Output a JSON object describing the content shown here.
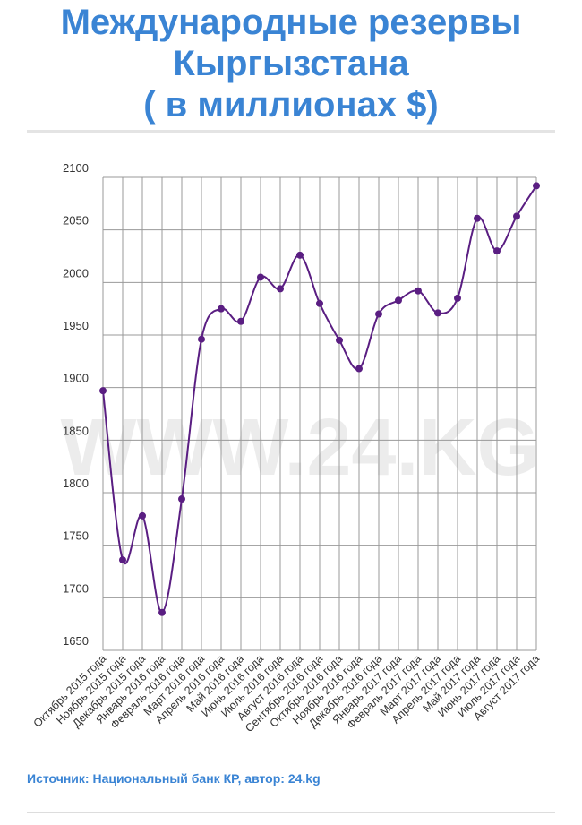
{
  "chart_data": {
    "type": "line",
    "title": [
      "Международные резервы",
      "Кыргызстана",
      "( в миллионах $)"
    ],
    "watermark": "WWW.24.KG",
    "source": "Источник: Национальный банк КР, автор: 24.kg",
    "categories": [
      "Октябрь 2015 года",
      "Ноябрь 2015 года",
      "Декабрь 2015 года",
      "Январь 2016 года",
      "Февраль 2016 года",
      "Март 2016 года",
      "Апрель 2016 года",
      "Май 2016 года",
      "Июнь 2016 года",
      "Июль 2016 года",
      "Август 2016 года",
      "Сентябрь 2016 года",
      "Октябрь 2016 года",
      "Ноябрь 2016 года",
      "Декабрь 2016 года",
      "Январь 2017 года",
      "Февраль 2017 года",
      "Март 2017 года",
      "Апрель 2017 года",
      "Май 2017 года",
      "Июнь 2017 года",
      "Июль 2017 года",
      "Август 2017 года"
    ],
    "values": [
      1897,
      1736,
      1778,
      1686,
      1794,
      1946,
      1975,
      1963,
      2005,
      1994,
      2026,
      1980,
      1945,
      1918,
      1970,
      1983,
      1992,
      1971,
      1985,
      2061,
      2030,
      2063,
      2092
    ],
    "color": "#5a1e82",
    "ylim": [
      1650,
      2100
    ],
    "yticks": [
      1650,
      1700,
      1750,
      1800,
      1850,
      1900,
      1950,
      2000,
      2050,
      2100
    ],
    "grid": true
  }
}
